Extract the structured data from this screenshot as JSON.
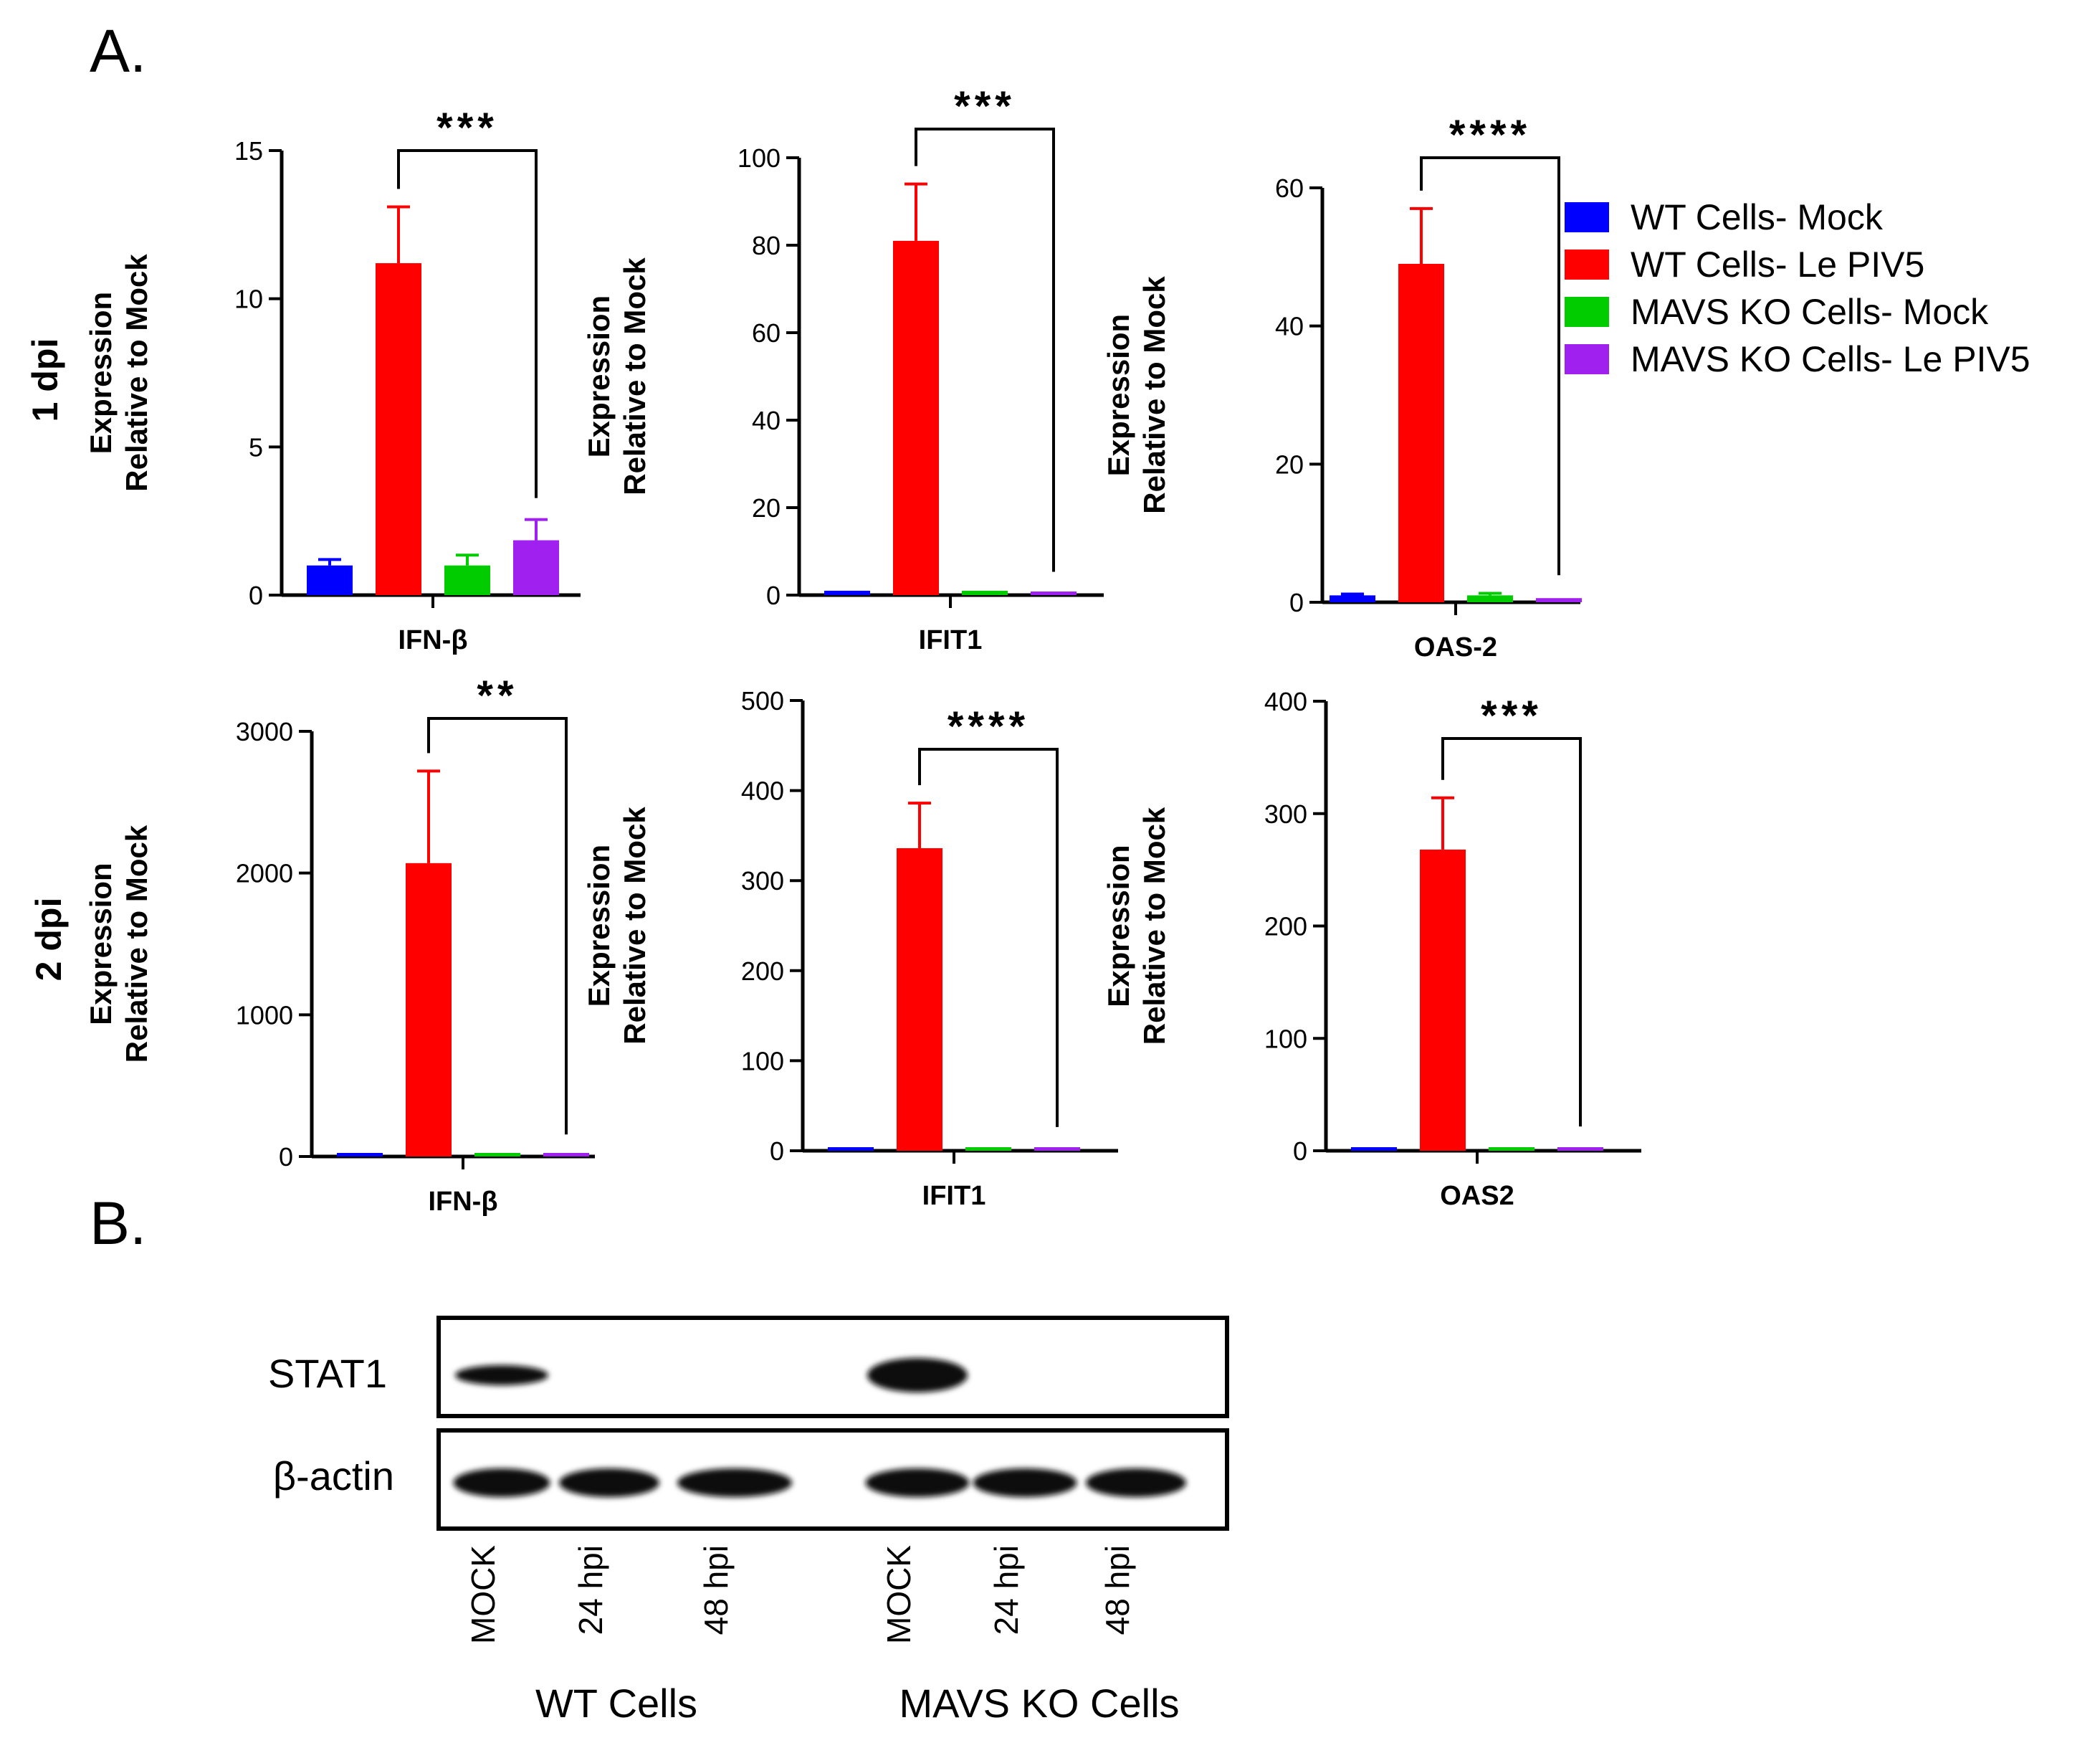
{
  "panels": {
    "a": "A.",
    "b": "B."
  },
  "row_labels": [
    "1 dpi",
    "2 dpi"
  ],
  "ylabel_line1": "Expression",
  "ylabel_line2": "Relative to Mock",
  "colors": {
    "WT Cells- Mock": "#0000ff",
    "WT Cells- Le PIV5": "#ff0000",
    "MAVS KO Cells- Mock": "#00cc00",
    "MAVS KO Cells- Le PIV5": "#a020f0"
  },
  "legend": [
    "WT Cells- Mock",
    "WT Cells- Le PIV5",
    "MAVS KO Cells- Mock",
    "MAVS KO Cells- Le PIV5"
  ],
  "chart_data": [
    {
      "type": "bar",
      "category": "IFN-β",
      "timepoint": "1 dpi",
      "series": [
        "WT Cells- Mock",
        "WT Cells- Le PIV5",
        "MAVS KO Cells- Mock",
        "MAVS KO Cells- Le PIV5"
      ],
      "values": [
        1.0,
        11.2,
        1.0,
        1.85
      ],
      "errors": [
        0.2,
        1.9,
        0.35,
        0.7
      ],
      "ylim": [
        0,
        15
      ],
      "yticks": [
        0,
        5,
        10,
        15
      ],
      "significance": "***"
    },
    {
      "type": "bar",
      "category": "IFIT1",
      "timepoint": "1 dpi",
      "series": [
        "WT Cells- Mock",
        "WT Cells- Le PIV5",
        "MAVS KO Cells- Mock",
        "MAVS KO Cells- Le PIV5"
      ],
      "values": [
        1.0,
        81.0,
        1.0,
        0.3
      ],
      "errors": [
        0.2,
        13.0,
        0.3,
        0.1
      ],
      "ylim": [
        0,
        100
      ],
      "yticks": [
        0,
        20,
        40,
        60,
        80,
        100
      ],
      "significance": "***"
    },
    {
      "type": "bar",
      "category": "OAS-2",
      "timepoint": "1 dpi",
      "series": [
        "WT Cells- Mock",
        "WT Cells- Le PIV5",
        "MAVS KO Cells- Mock",
        "MAVS KO Cells- Le PIV5"
      ],
      "values": [
        1.0,
        49.0,
        1.0,
        0.6
      ],
      "errors": [
        0.2,
        8.0,
        0.3,
        0.2
      ],
      "ylim": [
        0,
        60
      ],
      "yticks": [
        0,
        20,
        40,
        60
      ],
      "significance": "****"
    },
    {
      "type": "bar",
      "category": "IFN-β",
      "timepoint": "2 dpi",
      "series": [
        "WT Cells- Mock",
        "WT Cells- Le PIV5",
        "MAVS KO Cells- Mock",
        "MAVS KO Cells- Le PIV5"
      ],
      "values": [
        1,
        2070,
        1,
        3
      ],
      "errors": [
        0.5,
        650,
        0.5,
        1
      ],
      "ylim": [
        0,
        3000
      ],
      "yticks": [
        0,
        1000,
        2000,
        3000
      ],
      "significance": "**"
    },
    {
      "type": "bar",
      "category": "IFIT1",
      "timepoint": "2 dpi",
      "series": [
        "WT Cells- Mock",
        "WT Cells- Le PIV5",
        "MAVS KO Cells- Mock",
        "MAVS KO Cells- Le PIV5"
      ],
      "values": [
        1,
        336,
        1,
        2
      ],
      "errors": [
        0.5,
        50,
        0.5,
        0.5
      ],
      "ylim": [
        0,
        500
      ],
      "yticks": [
        0,
        100,
        200,
        300,
        400,
        500
      ],
      "significance": "****"
    },
    {
      "type": "bar",
      "category": "OAS2",
      "timepoint": "2 dpi",
      "series": [
        "WT Cells- Mock",
        "WT Cells- Le PIV5",
        "MAVS KO Cells- Mock",
        "MAVS KO Cells- Le PIV5"
      ],
      "values": [
        1,
        268,
        1,
        2
      ],
      "errors": [
        0.5,
        46,
        0.5,
        0.5
      ],
      "ylim": [
        0,
        400
      ],
      "yticks": [
        0,
        100,
        200,
        300,
        400
      ],
      "significance": "***"
    }
  ],
  "blot": {
    "rows": [
      "STAT1",
      "β-actin"
    ],
    "lanes": [
      "MOCK",
      "24 hpi",
      "48 hpi",
      "MOCK",
      "24 hpi",
      "48 hpi"
    ],
    "groups": [
      "WT Cells",
      "MAVS KO Cells"
    ],
    "stat1_present": [
      true,
      false,
      false,
      true,
      false,
      false
    ],
    "actin_present": [
      true,
      true,
      true,
      true,
      true,
      true
    ]
  }
}
